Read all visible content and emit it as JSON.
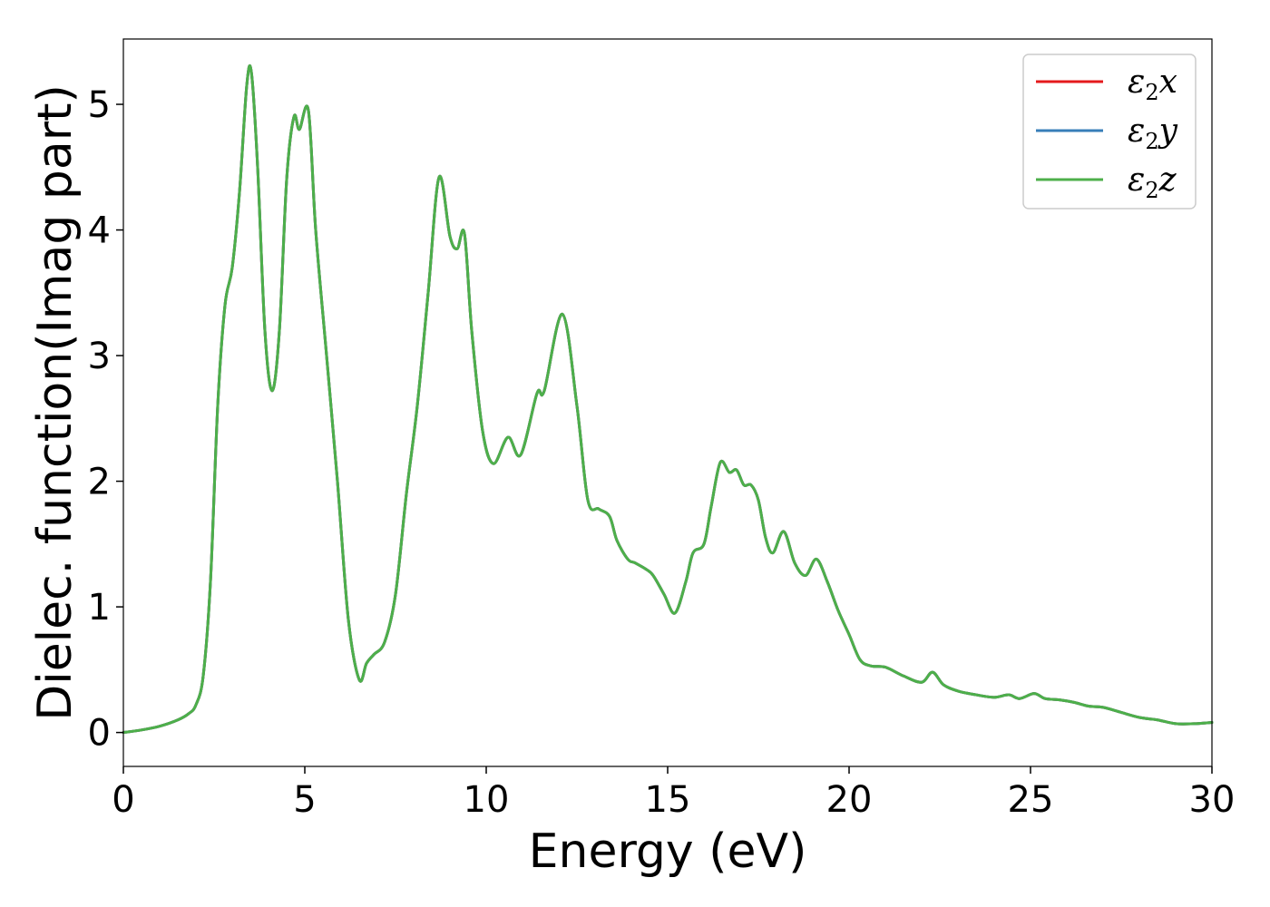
{
  "chart_data": {
    "type": "line",
    "title": "",
    "xlabel": "Energy (eV)",
    "ylabel": "Dielec. function(Imag part)",
    "xlim": [
      0,
      30
    ],
    "ylim": [
      -0.27,
      5.52
    ],
    "xticks": [
      "0",
      "5",
      "10",
      "15",
      "20",
      "25",
      "30"
    ],
    "xtick_values": [
      0,
      5,
      10,
      15,
      20,
      25,
      30
    ],
    "yticks": [
      "0",
      "1",
      "2",
      "3",
      "4",
      "5"
    ],
    "ytick_values": [
      0,
      1,
      2,
      3,
      4,
      5
    ],
    "grid": false,
    "legend_position": "top-right",
    "x": [
      0.0,
      0.5,
      1.0,
      1.5,
      1.8,
      2.0,
      2.2,
      2.4,
      2.6,
      2.8,
      3.0,
      3.2,
      3.4,
      3.53,
      3.7,
      3.9,
      4.1,
      4.3,
      4.5,
      4.7,
      4.85,
      5.1,
      5.3,
      5.6,
      5.9,
      6.2,
      6.5,
      6.7,
      6.9,
      7.2,
      7.5,
      7.8,
      8.1,
      8.4,
      8.7,
      9.0,
      9.2,
      9.4,
      9.6,
      9.9,
      10.2,
      10.6,
      10.95,
      11.4,
      11.6,
      12.1,
      12.5,
      12.8,
      13.1,
      13.4,
      13.6,
      13.9,
      14.1,
      14.4,
      14.6,
      14.9,
      15.2,
      15.5,
      15.7,
      16.0,
      16.2,
      16.45,
      16.7,
      16.9,
      17.1,
      17.3,
      17.5,
      17.7,
      17.9,
      18.2,
      18.5,
      18.8,
      19.1,
      19.4,
      19.7,
      20.0,
      20.3,
      20.6,
      21.0,
      21.5,
      22.0,
      22.3,
      22.6,
      23.0,
      23.5,
      24.0,
      24.4,
      24.7,
      25.1,
      25.4,
      25.8,
      26.2,
      26.6,
      27.0,
      27.5,
      28.0,
      28.5,
      29.0,
      29.5,
      30.0
    ],
    "series": [
      {
        "name": "ε2x",
        "color": "#e41a1c",
        "values": [
          0.0,
          0.02,
          0.05,
          0.1,
          0.15,
          0.22,
          0.45,
          1.2,
          2.6,
          3.4,
          3.7,
          4.3,
          5.15,
          5.25,
          4.5,
          3.2,
          2.72,
          3.2,
          4.4,
          4.9,
          4.8,
          4.95,
          4.0,
          3.0,
          2.0,
          0.9,
          0.42,
          0.55,
          0.62,
          0.72,
          1.1,
          1.9,
          2.6,
          3.5,
          4.42,
          3.95,
          3.85,
          3.97,
          3.2,
          2.4,
          2.14,
          2.35,
          2.21,
          2.7,
          2.72,
          3.33,
          2.6,
          1.85,
          1.78,
          1.72,
          1.53,
          1.38,
          1.35,
          1.3,
          1.25,
          1.1,
          0.95,
          1.2,
          1.43,
          1.5,
          1.8,
          2.15,
          2.07,
          2.09,
          1.97,
          1.97,
          1.85,
          1.55,
          1.43,
          1.6,
          1.35,
          1.25,
          1.38,
          1.2,
          0.97,
          0.78,
          0.58,
          0.53,
          0.52,
          0.45,
          0.4,
          0.48,
          0.38,
          0.33,
          0.3,
          0.28,
          0.3,
          0.27,
          0.31,
          0.27,
          0.26,
          0.24,
          0.21,
          0.2,
          0.16,
          0.12,
          0.1,
          0.07,
          0.07,
          0.08
        ]
      },
      {
        "name": "ε2y",
        "color": "#377eb8",
        "values": [
          0.0,
          0.02,
          0.05,
          0.1,
          0.15,
          0.22,
          0.45,
          1.2,
          2.6,
          3.4,
          3.7,
          4.3,
          5.15,
          5.25,
          4.5,
          3.2,
          2.72,
          3.2,
          4.4,
          4.9,
          4.8,
          4.95,
          4.0,
          3.0,
          2.0,
          0.9,
          0.42,
          0.55,
          0.62,
          0.72,
          1.1,
          1.9,
          2.6,
          3.5,
          4.42,
          3.95,
          3.85,
          3.97,
          3.2,
          2.4,
          2.14,
          2.35,
          2.21,
          2.7,
          2.72,
          3.33,
          2.6,
          1.85,
          1.78,
          1.72,
          1.53,
          1.38,
          1.35,
          1.3,
          1.25,
          1.1,
          0.95,
          1.2,
          1.43,
          1.5,
          1.8,
          2.15,
          2.07,
          2.09,
          1.97,
          1.97,
          1.85,
          1.55,
          1.43,
          1.6,
          1.35,
          1.25,
          1.38,
          1.2,
          0.97,
          0.78,
          0.58,
          0.53,
          0.52,
          0.45,
          0.4,
          0.48,
          0.38,
          0.33,
          0.3,
          0.28,
          0.3,
          0.27,
          0.31,
          0.27,
          0.26,
          0.24,
          0.21,
          0.2,
          0.16,
          0.12,
          0.1,
          0.07,
          0.07,
          0.08
        ]
      },
      {
        "name": "ε2z",
        "color": "#4daf4a",
        "values": [
          0.0,
          0.02,
          0.05,
          0.1,
          0.15,
          0.22,
          0.45,
          1.2,
          2.6,
          3.4,
          3.7,
          4.3,
          5.15,
          5.25,
          4.5,
          3.2,
          2.72,
          3.2,
          4.4,
          4.9,
          4.8,
          4.95,
          4.0,
          3.0,
          2.0,
          0.9,
          0.42,
          0.55,
          0.62,
          0.72,
          1.1,
          1.9,
          2.6,
          3.5,
          4.42,
          3.95,
          3.85,
          3.97,
          3.2,
          2.4,
          2.14,
          2.35,
          2.21,
          2.7,
          2.72,
          3.33,
          2.6,
          1.85,
          1.78,
          1.72,
          1.53,
          1.38,
          1.35,
          1.3,
          1.25,
          1.1,
          0.95,
          1.2,
          1.43,
          1.5,
          1.8,
          2.15,
          2.07,
          2.09,
          1.97,
          1.97,
          1.85,
          1.55,
          1.43,
          1.6,
          1.35,
          1.25,
          1.38,
          1.2,
          0.97,
          0.78,
          0.58,
          0.53,
          0.52,
          0.45,
          0.4,
          0.48,
          0.38,
          0.33,
          0.3,
          0.28,
          0.3,
          0.27,
          0.31,
          0.27,
          0.26,
          0.24,
          0.21,
          0.2,
          0.16,
          0.12,
          0.1,
          0.07,
          0.07,
          0.08
        ]
      }
    ],
    "legend": [
      {
        "symbol": "ε",
        "sub": "2",
        "axis": "x"
      },
      {
        "symbol": "ε",
        "sub": "2",
        "axis": "y"
      },
      {
        "symbol": "ε",
        "sub": "2",
        "axis": "z"
      }
    ]
  }
}
